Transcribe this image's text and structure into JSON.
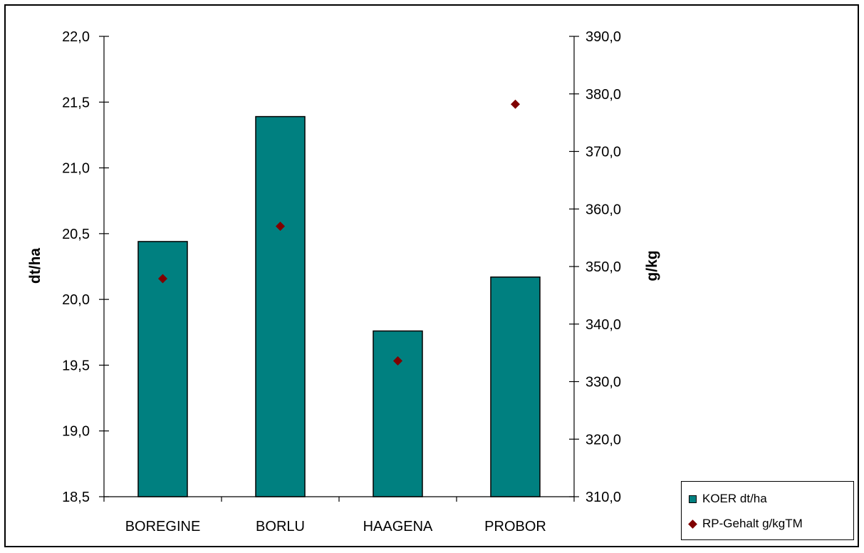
{
  "chart_data": {
    "type": "bar",
    "categories": [
      "BOREGINE",
      "BORLU",
      "HAAGENA",
      "PROBOR"
    ],
    "series": [
      {
        "name": "KOER dt/ha",
        "kind": "bar",
        "axis": "left",
        "color": "#008080",
        "values": [
          20.44,
          21.39,
          19.76,
          20.17
        ]
      },
      {
        "name": "RP-Gehalt g/kgTM",
        "kind": "scatter",
        "marker": "diamond",
        "axis": "right",
        "color": "#800000",
        "values": [
          347.9,
          357.0,
          333.6,
          378.2
        ]
      }
    ],
    "ylabel": "dt/ha",
    "ylim": [
      18.5,
      22.0
    ],
    "yticks": [
      "18,5",
      "19,0",
      "19,5",
      "20,0",
      "20,5",
      "21,0",
      "21,5",
      "22,0"
    ],
    "y2label": "g/kg",
    "y2lim": [
      310.0,
      390.0
    ],
    "y2ticks": [
      "310,0",
      "320,0",
      "330,0",
      "340,0",
      "350,0",
      "360,0",
      "370,0",
      "380,0",
      "390,0"
    ],
    "grid": false,
    "legend": "bottom-right"
  }
}
